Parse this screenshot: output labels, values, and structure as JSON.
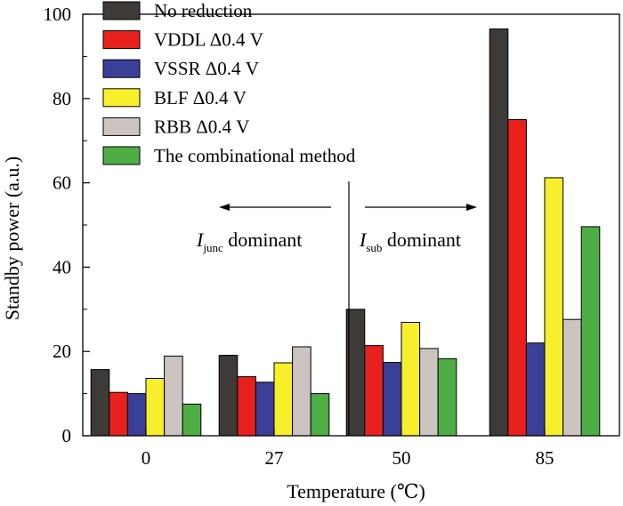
{
  "chart_data": {
    "type": "bar",
    "xlabel": "Temperature (℃)",
    "ylabel": "Standby power (a.u.)",
    "ylim": [
      0,
      100
    ],
    "yticks": [
      0,
      20,
      40,
      60,
      80,
      100
    ],
    "categories": [
      "0",
      "27",
      "50",
      "85"
    ],
    "series": [
      {
        "name": "No reduction",
        "color": "#3d3a37",
        "values": [
          15.7,
          19.1,
          30.0,
          96.5
        ]
      },
      {
        "name": "VDDL Δ0.4 V",
        "color": "#e8201e",
        "values": [
          10.3,
          14.0,
          21.4,
          75.0
        ]
      },
      {
        "name": "VSSR Δ0.4 V",
        "color": "#3a3f97",
        "values": [
          10.0,
          12.7,
          17.4,
          22.0
        ]
      },
      {
        "name": "BLF Δ0.4 V",
        "color": "#f8ef2c",
        "values": [
          13.6,
          17.3,
          26.9,
          61.2
        ]
      },
      {
        "name": "RBB Δ0.4 V",
        "color": "#cbc4c0",
        "values": [
          18.9,
          21.1,
          20.7,
          27.6
        ]
      },
      {
        "name": "The combinational method",
        "color": "#4fad45",
        "values": [
          7.5,
          10.0,
          18.3,
          49.6
        ]
      }
    ],
    "legend_position": "top-left",
    "annotations": {
      "left_main": "I",
      "left_sub": "junc",
      "left_text": " dominant",
      "right_main": "I",
      "right_sub": "sub",
      "right_text": " dominant"
    }
  }
}
